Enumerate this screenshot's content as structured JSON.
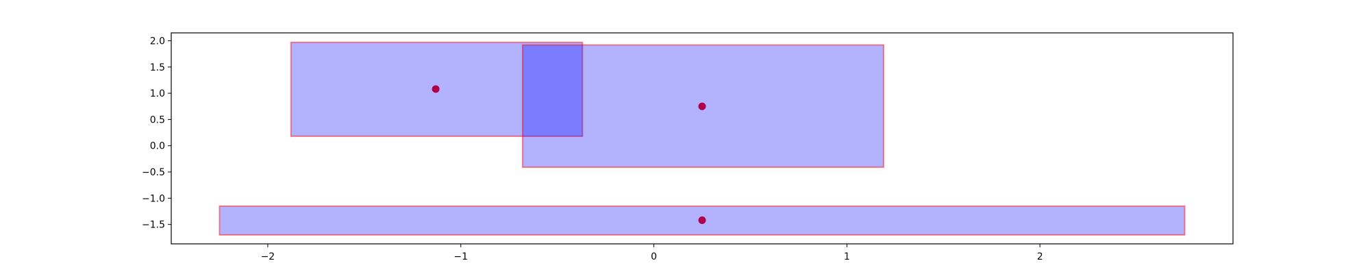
{
  "chart_data": {
    "type": "rectangles-with-centers",
    "title": "",
    "xlabel": "",
    "ylabel": "",
    "xlim": [
      -2.5,
      3.0
    ],
    "ylim": [
      -1.87,
      2.15
    ],
    "grid": false,
    "legend": "none",
    "xticks": [
      -2,
      -1,
      0,
      1,
      2
    ],
    "yticks": [
      -1.5,
      -1.0,
      -0.5,
      0.0,
      0.5,
      1.0,
      1.5,
      2.0
    ],
    "xtick_labels": [
      "−2",
      "−1",
      "0",
      "1",
      "2"
    ],
    "ytick_labels": [
      "−1.5",
      "−1.0",
      "−0.5",
      "0.0",
      "0.5",
      "1.0",
      "1.5",
      "2.0"
    ],
    "rectangles": [
      {
        "x0": -1.88,
        "x1": -0.37,
        "y0": 0.18,
        "y1": 1.97,
        "cx": -1.13,
        "cy": 1.08
      },
      {
        "x0": -0.68,
        "x1": 1.19,
        "y0": -0.41,
        "y1": 1.92,
        "cx": 0.25,
        "cy": 0.75
      },
      {
        "x0": -2.25,
        "x1": 2.75,
        "y0": -1.7,
        "y1": -1.15,
        "cx": 0.25,
        "cy": -1.42
      }
    ],
    "colors": {
      "fill": "#0000ff",
      "edge": "#ff0000",
      "point": "#b0004a"
    }
  }
}
